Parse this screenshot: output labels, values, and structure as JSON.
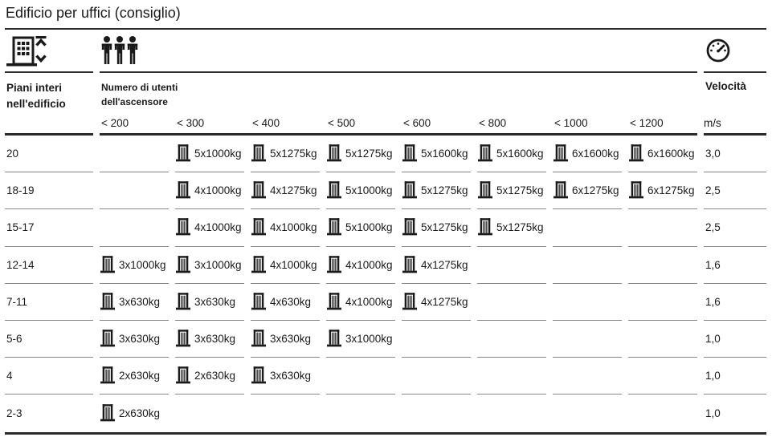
{
  "title": "Edificio per uffici (consiglio)",
  "icons": {
    "building": "building-floors-elevator-travel-icon",
    "users": "three-persons-icon",
    "speed": "speedometer-icon",
    "lift": "elevator-doors-icon"
  },
  "colors": {
    "text": "#1a1a1a",
    "rule_dark": "#2b2b2b",
    "rule_gray": "#878787",
    "door_panel": "#4d4d4d"
  },
  "table": {
    "floors_header": "Piani interi\nnell'edificio",
    "users_header": "Numero di utenti\ndell'ascensore",
    "speed_header": "Velocità",
    "speed_unit": "m/s",
    "user_columns": [
      "< 200",
      "< 300",
      "< 400",
      "< 500",
      "< 600",
      "< 800",
      "< 1000",
      "< 1200"
    ],
    "rows": [
      {
        "floors": "20",
        "cells": [
          "",
          "5x1000kg",
          "5x1275kg",
          "5x1275kg",
          "5x1600kg",
          "5x1600kg",
          "6x1600kg",
          "6x1600kg"
        ],
        "speed": "3,0"
      },
      {
        "floors": "18-19",
        "cells": [
          "",
          "4x1000kg",
          "4x1275kg",
          "5x1000kg",
          "5x1275kg",
          "5x1275kg",
          "6x1275kg",
          "6x1275kg"
        ],
        "speed": "2,5"
      },
      {
        "floors": "15-17",
        "cells": [
          "",
          "4x1000kg",
          "4x1000kg",
          "5x1000kg",
          "5x1275kg",
          "5x1275kg",
          "",
          ""
        ],
        "speed": "2,5"
      },
      {
        "floors": "12-14",
        "cells": [
          "3x1000kg",
          "3x1000kg",
          "4x1000kg",
          "4x1000kg",
          "4x1275kg",
          "",
          "",
          ""
        ],
        "speed": "1,6"
      },
      {
        "floors": "7-11",
        "cells": [
          "3x630kg",
          "3x630kg",
          "4x630kg",
          "4x1000kg",
          "4x1275kg",
          "",
          "",
          ""
        ],
        "speed": "1,6"
      },
      {
        "floors": "5-6",
        "cells": [
          "3x630kg",
          "3x630kg",
          "3x630kg",
          "3x1000kg",
          "",
          "",
          "",
          ""
        ],
        "speed": "1,0"
      },
      {
        "floors": "4",
        "cells": [
          "2x630kg",
          "2x630kg",
          "3x630kg",
          "",
          "",
          "",
          "",
          ""
        ],
        "speed": "1,0"
      },
      {
        "floors": "2-3",
        "cells": [
          "2x630kg",
          "",
          "",
          "",
          "",
          "",
          "",
          ""
        ],
        "speed": "1,0"
      }
    ]
  }
}
